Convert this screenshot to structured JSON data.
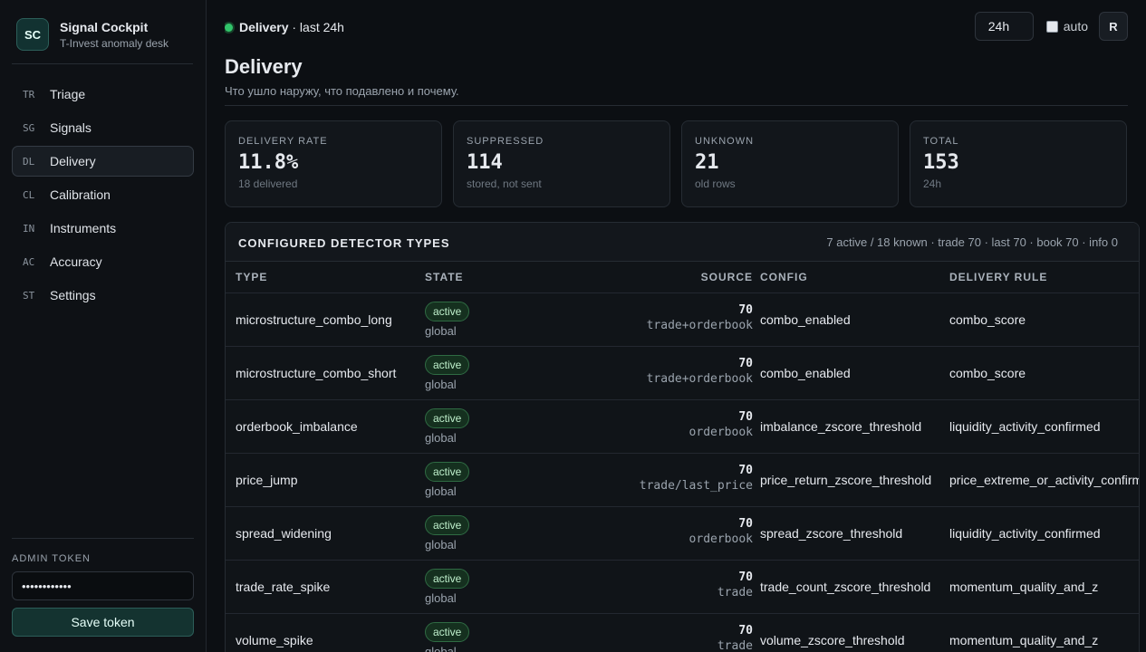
{
  "sidebar": {
    "logo": "SC",
    "title": "Signal Cockpit",
    "subtitle": "T-Invest anomaly desk",
    "nav": [
      {
        "code": "TR",
        "label": "Triage"
      },
      {
        "code": "SG",
        "label": "Signals"
      },
      {
        "code": "DL",
        "label": "Delivery",
        "active": true
      },
      {
        "code": "CL",
        "label": "Calibration"
      },
      {
        "code": "IN",
        "label": "Instruments"
      },
      {
        "code": "AC",
        "label": "Accuracy"
      },
      {
        "code": "ST",
        "label": "Settings"
      }
    ],
    "admin_label": "ADMIN TOKEN",
    "token": "••••••••••••",
    "save": "Save token"
  },
  "header": {
    "status": "Delivery",
    "range": "· last 24h",
    "select": "24h",
    "auto": "auto",
    "refresh": "R",
    "title": "Delivery",
    "subtitle": "Что ушло наружу, что подавлено и почему."
  },
  "cards": [
    {
      "label": "DELIVERY RATE",
      "value": "11.8%",
      "note": "18 delivered"
    },
    {
      "label": "SUPPRESSED",
      "value": "114",
      "note": "stored, not sent"
    },
    {
      "label": "UNKNOWN",
      "value": "21",
      "note": "old rows"
    },
    {
      "label": "TOTAL",
      "value": "153",
      "note": "24h"
    }
  ],
  "table": {
    "title": "CONFIGURED DETECTOR TYPES",
    "summary": "7 active / 18 known · trade 70 · last 70 · book 70 · info 0",
    "columns": [
      "TYPE",
      "STATE",
      "SOURCE",
      "CONFIG",
      "DELIVERY RULE"
    ],
    "rows": [
      {
        "type": "microstructure_combo_long",
        "state": "active",
        "scope": "global",
        "count": 70,
        "source": "trade+orderbook",
        "config": "combo_enabled",
        "rule": "combo_score"
      },
      {
        "type": "microstructure_combo_short",
        "state": "active",
        "scope": "global",
        "count": 70,
        "source": "trade+orderbook",
        "config": "combo_enabled",
        "rule": "combo_score"
      },
      {
        "type": "orderbook_imbalance",
        "state": "active",
        "scope": "global",
        "count": 70,
        "source": "orderbook",
        "config": "imbalance_zscore_threshold",
        "rule": "liquidity_activity_confirmed"
      },
      {
        "type": "price_jump",
        "state": "active",
        "scope": "global",
        "count": 70,
        "source": "trade/last_price",
        "config": "price_return_zscore_threshold",
        "rule": "price_extreme_or_activity_confirmed"
      },
      {
        "type": "spread_widening",
        "state": "active",
        "scope": "global",
        "count": 70,
        "source": "orderbook",
        "config": "spread_zscore_threshold",
        "rule": "liquidity_activity_confirmed"
      },
      {
        "type": "trade_rate_spike",
        "state": "active",
        "scope": "global",
        "count": 70,
        "source": "trade",
        "config": "trade_count_zscore_threshold",
        "rule": "momentum_quality_and_z"
      },
      {
        "type": "volume_spike",
        "state": "active",
        "scope": "global",
        "count": 70,
        "source": "trade",
        "config": "volume_zscore_threshold",
        "rule": "momentum_quality_and_z"
      }
    ]
  }
}
